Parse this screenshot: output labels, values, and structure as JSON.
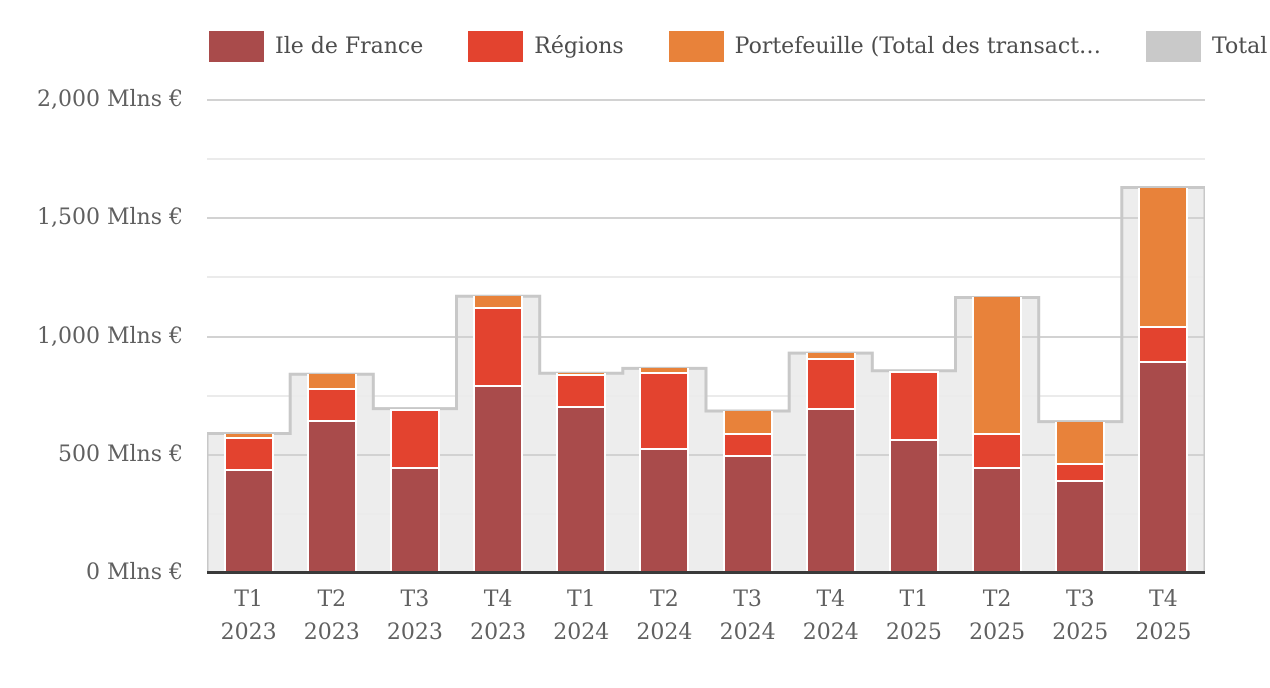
{
  "legend": {
    "items": [
      {
        "label": "Ile de France",
        "color": "#a94b4b"
      },
      {
        "label": "Régions",
        "color": "#e3432f"
      },
      {
        "label": "Portefeuille (Total des transact…",
        "color": "#e8823a"
      },
      {
        "label": "Total",
        "color": "#c9c9c9"
      }
    ]
  },
  "chart_data": {
    "type": "bar",
    "stacked": true,
    "title": "",
    "xlabel": "",
    "ylabel": "",
    "unit": "Mlns €",
    "grid": "on",
    "legend_position": "top",
    "categories": [
      "T1 2023",
      "T2 2023",
      "T3 2023",
      "T4 2023",
      "T1 2024",
      "T2 2024",
      "T3 2024",
      "T4 2024",
      "T1 2025",
      "T2 2025",
      "T3 2025",
      "T4 2025"
    ],
    "series": [
      {
        "name": "Ile de France",
        "color": "#a94b4b",
        "type": "stacked-column",
        "values": [
          430,
          640,
          440,
          785,
          700,
          520,
          490,
          690,
          560,
          440,
          385,
          890
        ]
      },
      {
        "name": "Régions",
        "color": "#e3432f",
        "type": "stacked-column",
        "values": [
          135,
          135,
          245,
          330,
          135,
          320,
          95,
          210,
          285,
          145,
          70,
          145
        ]
      },
      {
        "name": "Portefeuille (Total des transact…",
        "color": "#e8823a",
        "type": "stacked-column",
        "values": [
          25,
          65,
          10,
          55,
          10,
          25,
          100,
          30,
          10,
          580,
          185,
          595
        ]
      },
      {
        "name": "Total",
        "color": "#c9c9c9",
        "type": "step-background",
        "values": [
          590,
          840,
          695,
          1170,
          845,
          865,
          685,
          930,
          855,
          1165,
          640,
          1630
        ]
      }
    ],
    "ylim": [
      0,
      2000
    ],
    "ytick_minor_step": 250,
    "yticks": [
      {
        "value": 0,
        "label": "0 Mlns €"
      },
      {
        "value": 500,
        "label": "500 Mlns €"
      },
      {
        "value": 1000,
        "label": "1,000 Mlns €"
      },
      {
        "value": 1500,
        "label": "1,500 Mlns €"
      },
      {
        "value": 2000,
        "label": "2,000 Mlns €"
      }
    ]
  },
  "colors": {
    "background": "#ffffff",
    "total_fill": "#ededed",
    "total_stroke": "#c8c8c8",
    "gridline_major": "#d2d2d2",
    "gridline_minor": "#ebebeb",
    "axis_line": "#3a3a3a",
    "axis_text": "#606060",
    "legend_text": "#4d4d4d",
    "segment_separator": "#ffffff"
  }
}
